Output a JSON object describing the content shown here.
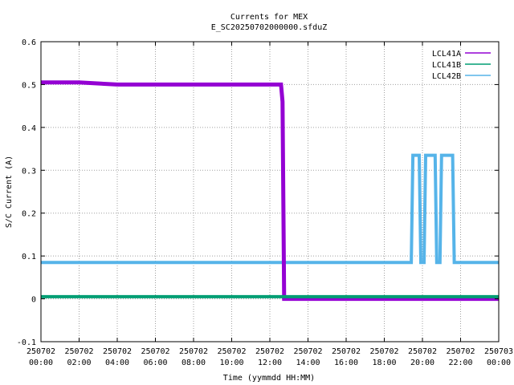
{
  "chart_data": {
    "type": "line",
    "title": "Currents for MEX",
    "subtitle": "E_SC20250702000000.sfduZ",
    "xlabel": "Time (yymmdd HH:MM)",
    "ylabel": "S/C Current (A)",
    "xlim": [
      "2025-07-02 00:00",
      "2025-07-03 00:00"
    ],
    "ylim": [
      -0.1,
      0.6
    ],
    "grid": true,
    "legend_position": "top-right",
    "y_ticks": [
      "-0.1",
      "0",
      "0.1",
      "0.2",
      "0.3",
      "0.4",
      "0.5",
      "0.6"
    ],
    "x_ticks": [
      {
        "date": "250702",
        "time": "00:00"
      },
      {
        "date": "250702",
        "time": "02:00"
      },
      {
        "date": "250702",
        "time": "04:00"
      },
      {
        "date": "250702",
        "time": "06:00"
      },
      {
        "date": "250702",
        "time": "08:00"
      },
      {
        "date": "250702",
        "time": "10:00"
      },
      {
        "date": "250702",
        "time": "12:00"
      },
      {
        "date": "250702",
        "time": "14:00"
      },
      {
        "date": "250702",
        "time": "16:00"
      },
      {
        "date": "250702",
        "time": "18:00"
      },
      {
        "date": "250702",
        "time": "20:00"
      },
      {
        "date": "250702",
        "time": "22:00"
      },
      {
        "date": "250703",
        "time": "00:00"
      }
    ],
    "series": [
      {
        "name": "LCL41A",
        "color": "#9400d3",
        "points": [
          [
            "2025-07-02 00:00",
            0.505
          ],
          [
            "2025-07-02 02:00",
            0.505
          ],
          [
            "2025-07-02 04:00",
            0.5
          ],
          [
            "2025-07-02 06:00",
            0.5
          ],
          [
            "2025-07-02 08:00",
            0.5
          ],
          [
            "2025-07-02 10:00",
            0.5
          ],
          [
            "2025-07-02 12:00",
            0.5
          ],
          [
            "2025-07-02 12:35",
            0.5
          ],
          [
            "2025-07-02 12:40",
            0.46
          ],
          [
            "2025-07-02 12:45",
            0.0
          ],
          [
            "2025-07-03 00:00",
            0.0
          ]
        ]
      },
      {
        "name": "LCL41B",
        "color": "#009e73",
        "points": [
          [
            "2025-07-02 00:00",
            0.005
          ],
          [
            "2025-07-03 00:00",
            0.005
          ]
        ]
      },
      {
        "name": "LCL42B",
        "color": "#56b4e9",
        "points": [
          [
            "2025-07-02 00:00",
            0.085
          ],
          [
            "2025-07-02 19:25",
            0.085
          ],
          [
            "2025-07-02 19:30",
            0.335
          ],
          [
            "2025-07-02 19:50",
            0.335
          ],
          [
            "2025-07-02 19:55",
            0.085
          ],
          [
            "2025-07-02 20:05",
            0.085
          ],
          [
            "2025-07-02 20:10",
            0.335
          ],
          [
            "2025-07-02 20:40",
            0.335
          ],
          [
            "2025-07-02 20:45",
            0.085
          ],
          [
            "2025-07-02 20:55",
            0.085
          ],
          [
            "2025-07-02 21:00",
            0.335
          ],
          [
            "2025-07-02 21:35",
            0.335
          ],
          [
            "2025-07-02 21:40",
            0.085
          ],
          [
            "2025-07-03 00:00",
            0.085
          ]
        ]
      }
    ]
  }
}
